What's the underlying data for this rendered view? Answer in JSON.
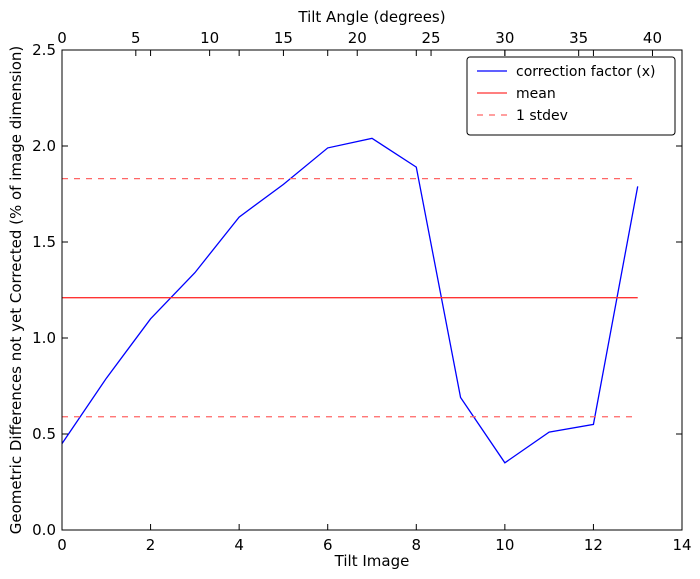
{
  "chart_data": {
    "type": "line",
    "xlabel": "Tilt Image",
    "ylabel": "Geometric Differences not yet Corrected (% of image dimension)",
    "top_xlabel": "Tilt Angle (degrees)",
    "xlim": [
      0,
      14
    ],
    "ylim": [
      0,
      2.5
    ],
    "top_xlim": [
      0,
      42
    ],
    "x_ticks": [
      0,
      2,
      4,
      6,
      8,
      10,
      12,
      14
    ],
    "y_ticks": [
      0.0,
      0.5,
      1.0,
      1.5,
      2.0,
      2.5
    ],
    "y_tick_labels": [
      "0.0",
      "0.5",
      "1.0",
      "1.5",
      "2.0",
      "2.5"
    ],
    "top_x_ticks": [
      0,
      5,
      10,
      15,
      20,
      25,
      30,
      35,
      40
    ],
    "grid": false,
    "legend_position": "top-right",
    "series": [
      {
        "name": "correction factor (x)",
        "color": "#0000ff",
        "style": "solid",
        "x": [
          0,
          1,
          2,
          3,
          4,
          5,
          6,
          7,
          8,
          9,
          10,
          11,
          12,
          13
        ],
        "y": [
          0.45,
          0.79,
          1.1,
          1.34,
          1.63,
          1.8,
          1.99,
          2.04,
          1.89,
          0.69,
          0.35,
          0.51,
          0.55,
          1.79
        ]
      },
      {
        "name": "mean",
        "color": "#ff3333",
        "style": "solid",
        "x": [
          0,
          13
        ],
        "y": [
          1.21,
          1.21
        ]
      },
      {
        "name": "1 stdev",
        "color": "#ff6666",
        "style": "dashed",
        "x": [
          0,
          13
        ],
        "y": [
          1.83,
          1.83
        ]
      },
      {
        "name": "",
        "color": "#ff6666",
        "style": "dashed",
        "x": [
          0,
          13
        ],
        "y": [
          0.59,
          0.59
        ]
      }
    ]
  }
}
